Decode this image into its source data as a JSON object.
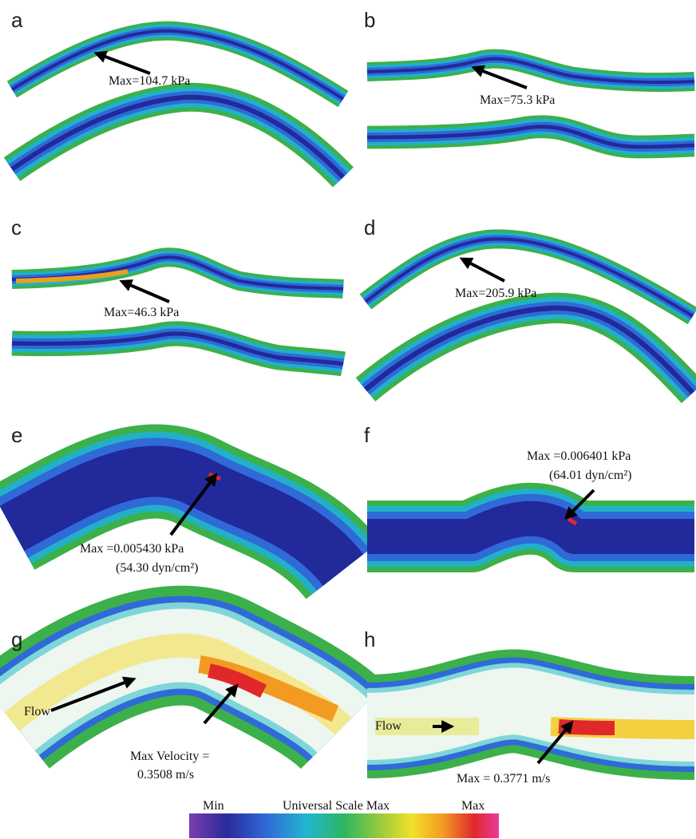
{
  "panels": [
    {
      "label": "a",
      "annotations": [
        "Max=104.7 kPa"
      ]
    },
    {
      "label": "b",
      "annotations": [
        "Max=75.3 kPa"
      ]
    },
    {
      "label": "c",
      "annotations": [
        "Max=46.3 kPa"
      ]
    },
    {
      "label": "d",
      "annotations": [
        "Max=205.9 kPa"
      ]
    },
    {
      "label": "e",
      "annotations": [
        "Max =0.005430 kPa",
        "(54.30 dyn/cm²)"
      ]
    },
    {
      "label": "f",
      "annotations": [
        "Max =0.006401 kPa",
        "(64.01 dyn/cm²)"
      ]
    },
    {
      "label": "g",
      "flow_label": "Flow",
      "annotations": [
        "Max Velocity =",
        "0.3508 m/s"
      ]
    },
    {
      "label": "h",
      "flow_label": "Flow",
      "annotations": [
        "Max = 0.3771 m/s"
      ]
    }
  ],
  "color_scale": {
    "min_label": "Min",
    "title": "Universal Scale Max",
    "max_label": "Max"
  }
}
